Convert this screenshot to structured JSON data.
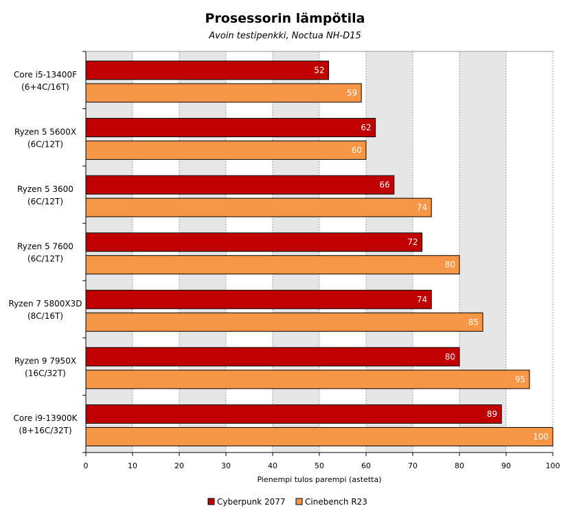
{
  "chart_data": {
    "type": "bar",
    "orientation": "horizontal",
    "title": "Prosessorin lämpötila",
    "subtitle": "Avoin testipenkki, Noctua NH-D15",
    "xlabel": "Pienempi tulos parempi (astetta)",
    "ylabel": "",
    "xlim": [
      0,
      100
    ],
    "xticks": [
      0,
      10,
      20,
      30,
      40,
      50,
      60,
      70,
      80,
      90,
      100
    ],
    "grid": true,
    "legend_position": "bottom",
    "categories": [
      [
        "Core i5-13400F",
        "(6+4C/16T)"
      ],
      [
        "Ryzen 5 5600X",
        "(6C/12T)"
      ],
      [
        "Ryzen 5 3600",
        "(6C/12T)"
      ],
      [
        "Ryzen 5 7600",
        "(6C/12T)"
      ],
      [
        "Ryzen 7 5800X3D",
        "(8C/16T)"
      ],
      [
        "Ryzen 9 7950X",
        "(16C/32T)"
      ],
      [
        "Core i9-13900K",
        "(8+16C/32T)"
      ]
    ],
    "series": [
      {
        "name": "Cyberpunk 2077",
        "color": "#c00000",
        "values": [
          52,
          62,
          66,
          72,
          74,
          80,
          89
        ]
      },
      {
        "name": "Cinebench R23",
        "color": "#f79646",
        "values": [
          59,
          60,
          74,
          80,
          85,
          95,
          100
        ]
      }
    ],
    "band_colors": [
      "#e6e6e6",
      "#ffffff"
    ]
  }
}
